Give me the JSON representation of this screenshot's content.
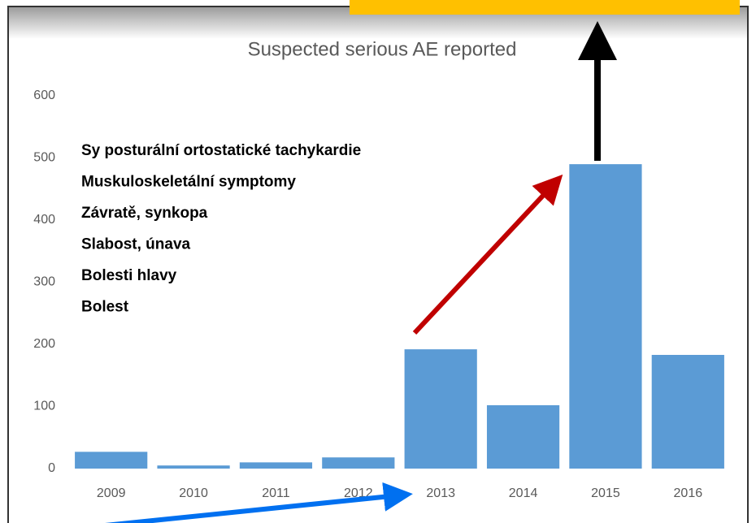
{
  "chart_data": {
    "type": "bar",
    "title": "Suspected serious AE reported",
    "categories": [
      "2009",
      "2010",
      "2011",
      "2012",
      "2013",
      "2014",
      "2015",
      "2016"
    ],
    "values": [
      27,
      5,
      10,
      18,
      192,
      102,
      490,
      183
    ],
    "color": "#5b9bd5",
    "ylim": [
      0,
      600
    ],
    "yticks": [
      0,
      100,
      200,
      300,
      400,
      500,
      600
    ],
    "grid": false,
    "annotations": [
      "Sy posturální ortostatické tachykardie",
      "Muskuloskeletální  symptomy",
      "Závratě, synkopa",
      "Slabost, únava",
      "Bolesti hlavy",
      "Bolest"
    ]
  }
}
